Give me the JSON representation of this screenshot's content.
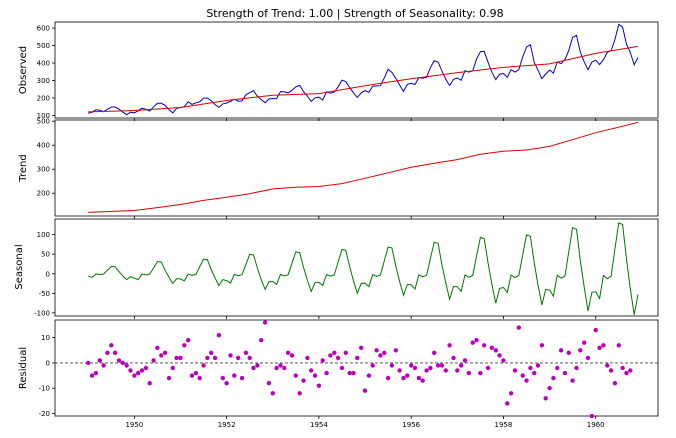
{
  "chart_data": {
    "type": "line",
    "title": "Strength of Trend: 1.00 | Strength of Seasonality: 0.98",
    "start_year": 1949,
    "months": 144,
    "x_ticks": [
      {
        "label": "1950",
        "value": 1950
      },
      {
        "label": "1952",
        "value": 1952
      },
      {
        "label": "1954",
        "value": 1954
      },
      {
        "label": "1956",
        "value": 1956
      },
      {
        "label": "1958",
        "value": 1958
      },
      {
        "label": "1960",
        "value": 1960
      }
    ],
    "panels": [
      {
        "id": "observed",
        "ylabel": "Observed",
        "ylim": [
          85,
          635
        ],
        "yticks": [
          100,
          200,
          300,
          400,
          500,
          600
        ],
        "colors": {
          "observed": "#0000cc",
          "trend": "#dd0000"
        },
        "trend_overlay_points": [
          {
            "x": 1949.0,
            "y": 120
          },
          {
            "x": 1950.0,
            "y": 128
          },
          {
            "x": 1951.0,
            "y": 145
          },
          {
            "x": 1952.0,
            "y": 185
          },
          {
            "x": 1953.0,
            "y": 215
          },
          {
            "x": 1954.0,
            "y": 225
          },
          {
            "x": 1955.0,
            "y": 270
          },
          {
            "x": 1956.0,
            "y": 310
          },
          {
            "x": 1957.0,
            "y": 345
          },
          {
            "x": 1958.0,
            "y": 375
          },
          {
            "x": 1959.0,
            "y": 395
          },
          {
            "x": 1960.0,
            "y": 455
          },
          {
            "x": 1960.917,
            "y": 495
          }
        ],
        "series": [
          {
            "values": [
              112,
              118,
              132,
              129,
              121,
              135,
              148,
              148,
              136,
              119,
              104,
              118,
              115,
              126,
              141,
              135,
              125,
              149,
              170,
              170,
              158,
              133,
              114,
              140,
              145,
              150,
              178,
              163,
              172,
              178,
              199,
              199,
              184,
              162,
              146,
              166,
              171,
              180,
              193,
              181,
              183,
              218,
              230,
              242,
              209,
              191,
              172,
              194,
              196,
              196,
              236,
              235,
              229,
              243,
              264,
              272,
              237,
              211,
              180,
              201,
              204,
              188,
              235,
              227,
              234,
              264,
              302,
              293,
              259,
              229,
              203,
              229,
              242,
              233,
              267,
              269,
              270,
              315,
              364,
              347,
              312,
              274,
              237,
              278,
              284,
              277,
              317,
              313,
              318,
              374,
              413,
              405,
              355,
              306,
              271,
              306,
              315,
              301,
              356,
              348,
              355,
              422,
              465,
              467,
              404,
              347,
              305,
              336,
              340,
              318,
              362,
              348,
              363,
              435,
              491,
              505,
              404,
              359,
              310,
              337,
              360,
              342,
              406,
              396,
              420,
              472,
              548,
              559,
              463,
              407,
              362,
              405,
              417,
              391,
              419,
              461,
              472,
              535,
              622,
              606,
              508,
              461,
              390,
              432
            ]
          }
        ]
      },
      {
        "id": "trend",
        "ylabel": "Trend",
        "ylim": [
          105,
          505
        ],
        "yticks": [
          200,
          300,
          400,
          500
        ],
        "colors": {
          "line": "#dd0000"
        },
        "points": [
          {
            "x": 1949.0,
            "y": 120
          },
          {
            "x": 1950.0,
            "y": 128
          },
          {
            "x": 1950.5,
            "y": 140
          },
          {
            "x": 1951.0,
            "y": 153
          },
          {
            "x": 1951.5,
            "y": 170
          },
          {
            "x": 1952.0,
            "y": 183
          },
          {
            "x": 1952.5,
            "y": 198
          },
          {
            "x": 1953.0,
            "y": 218
          },
          {
            "x": 1953.5,
            "y": 225
          },
          {
            "x": 1954.0,
            "y": 228
          },
          {
            "x": 1954.5,
            "y": 240
          },
          {
            "x": 1955.0,
            "y": 262
          },
          {
            "x": 1955.5,
            "y": 285
          },
          {
            "x": 1956.0,
            "y": 308
          },
          {
            "x": 1956.5,
            "y": 325
          },
          {
            "x": 1957.0,
            "y": 340
          },
          {
            "x": 1957.5,
            "y": 362
          },
          {
            "x": 1958.0,
            "y": 375
          },
          {
            "x": 1958.5,
            "y": 380
          },
          {
            "x": 1959.0,
            "y": 395
          },
          {
            "x": 1959.5,
            "y": 423
          },
          {
            "x": 1960.0,
            "y": 452
          },
          {
            "x": 1960.5,
            "y": 475
          },
          {
            "x": 1960.917,
            "y": 495
          }
        ]
      },
      {
        "id": "seasonal",
        "ylabel": "Seasonal",
        "ylim": [
          -108,
          140
        ],
        "yticks": [
          -100,
          -50,
          0,
          50,
          100
        ],
        "colors": {
          "line": "#007700"
        },
        "base_pattern": [
          -22,
          -30,
          -2,
          -6,
          -3,
          30,
          62,
          60,
          18,
          -18,
          -50,
          -25
        ],
        "amplitude_by_year": [
          0.3,
          0.5,
          0.6,
          0.8,
          0.9,
          1.0,
          1.1,
          1.3,
          1.5,
          1.6,
          1.9,
          2.1
        ]
      },
      {
        "id": "residual",
        "ylabel": "Residual",
        "ylim": [
          -21,
          17
        ],
        "yticks": [
          -20,
          -10,
          0,
          10
        ],
        "zero_line": true,
        "colors": {
          "marker": "#bb00bb",
          "zero_line": "#444444"
        },
        "values": [
          0,
          -5,
          -4,
          1,
          -1,
          4,
          7,
          4,
          1,
          0,
          -1,
          -3,
          -5,
          -4,
          -3,
          -2,
          -8,
          1,
          6,
          3,
          4,
          -6,
          -2,
          2,
          2,
          7,
          9,
          -5,
          -4,
          -6,
          -1,
          2,
          4,
          2,
          11,
          -6,
          -8,
          3,
          -5,
          2,
          -6,
          4,
          2,
          -2,
          -1,
          9,
          16,
          -8,
          -12,
          -2,
          -1,
          -2,
          4,
          3,
          -5,
          -12,
          -7,
          2,
          -3,
          -5,
          -9,
          1,
          -4,
          3,
          4,
          2,
          -2,
          4,
          -4,
          -4,
          2,
          6,
          -11,
          -5,
          -1,
          5,
          3,
          4,
          -6,
          -1,
          5,
          -3,
          -6,
          -5,
          -1,
          -2,
          -6,
          -7,
          -3,
          -2,
          4,
          -1,
          -1,
          -3,
          7,
          2,
          -3,
          -1,
          1,
          -4,
          8,
          9,
          -4,
          7,
          -2,
          6,
          5,
          3,
          1,
          -16,
          -12,
          -3,
          14,
          -5,
          -7,
          -2,
          -4,
          -1,
          7,
          -14,
          -10,
          -6,
          -2,
          5,
          -4,
          4,
          -7,
          -2,
          5,
          8,
          2,
          -21,
          13,
          6,
          7,
          -1,
          -3,
          -8,
          7,
          -2,
          -4,
          -3
        ]
      }
    ]
  }
}
